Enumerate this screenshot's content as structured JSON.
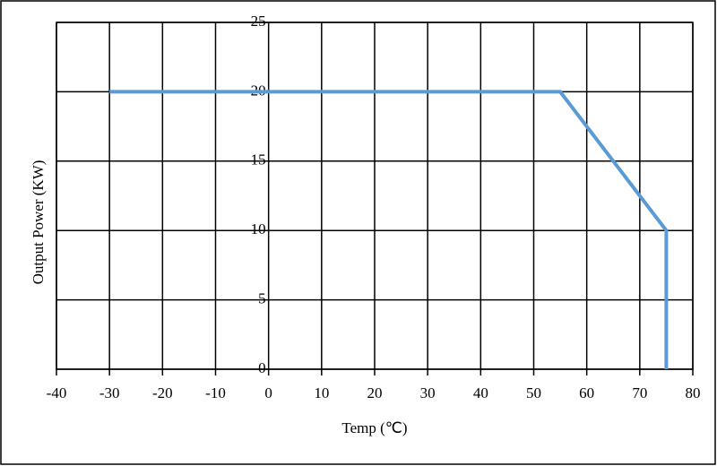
{
  "chart_data": {
    "type": "line",
    "x_label": "Temp (℃)",
    "y_label": "Output Power (KW)",
    "x": [
      -30,
      55,
      75,
      75
    ],
    "values": [
      20,
      20,
      10,
      0
    ],
    "color": "#5b9bd5",
    "xlim": [
      -40,
      80
    ],
    "xticks": [
      -40,
      -30,
      -20,
      -10,
      0,
      10,
      20,
      30,
      40,
      50,
      60,
      70,
      80
    ],
    "ylim": [
      0,
      25
    ],
    "yticks": [
      0,
      5,
      10,
      15,
      20,
      25
    ],
    "grid": true
  }
}
